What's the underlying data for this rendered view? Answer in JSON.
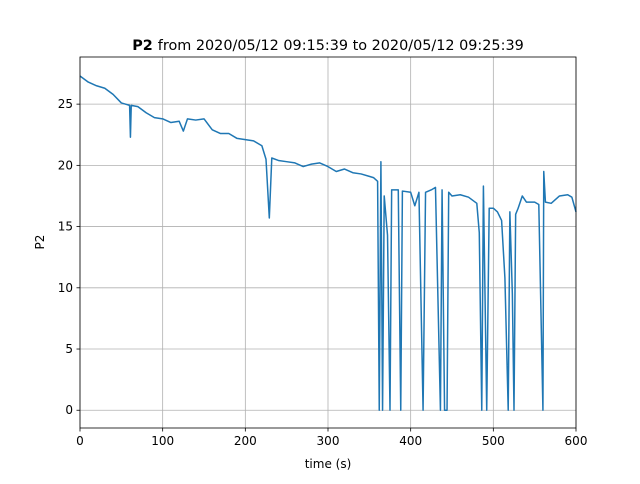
{
  "chart_data": {
    "type": "line",
    "title_bold": "P2",
    "title": "from 2020/05/12 09:15:39 to 2020/05/12 09:25:39",
    "x_label": "time (s)",
    "y_label": "P2",
    "xlim": [
      0,
      600
    ],
    "ylim": [
      -1.45,
      28.85
    ],
    "xticks": [
      0,
      100,
      200,
      300,
      400,
      500,
      600
    ],
    "yticks": [
      0,
      5,
      10,
      15,
      20,
      25
    ],
    "grid": true,
    "series": [
      {
        "name": "P2",
        "color": "#1f77b4",
        "x": [
          0,
          10,
          20,
          30,
          40,
          50,
          60,
          61,
          62,
          70,
          80,
          90,
          100,
          110,
          120,
          125,
          130,
          140,
          150,
          160,
          170,
          180,
          190,
          200,
          210,
          220,
          225,
          229,
          232,
          240,
          250,
          260,
          270,
          280,
          290,
          300,
          310,
          320,
          330,
          340,
          350,
          355,
          360,
          362,
          364,
          366,
          368,
          372,
          375,
          377,
          380,
          385,
          388,
          390,
          400,
          405,
          410,
          415,
          418,
          425,
          430,
          436,
          438,
          441,
          444,
          446,
          450,
          460,
          470,
          480,
          483,
          486,
          488,
          492,
          495,
          500,
          505,
          510,
          514,
          518,
          520,
          523,
          525,
          527,
          530,
          535,
          540,
          550,
          555,
          560,
          561,
          563,
          570,
          580,
          590,
          595,
          600
        ],
        "values": [
          27.3,
          26.8,
          26.5,
          26.3,
          25.8,
          25.1,
          24.9,
          22.3,
          24.9,
          24.8,
          24.3,
          23.9,
          23.8,
          23.5,
          23.6,
          22.8,
          23.8,
          23.7,
          23.8,
          22.9,
          22.6,
          22.6,
          22.2,
          22.1,
          22.0,
          21.6,
          20.5,
          15.7,
          20.6,
          20.4,
          20.3,
          20.2,
          19.9,
          20.1,
          20.2,
          19.9,
          19.5,
          19.7,
          19.4,
          19.3,
          19.1,
          19.0,
          18.7,
          0,
          20.3,
          0,
          17.5,
          14.3,
          0,
          18.0,
          18.0,
          18.0,
          0,
          17.9,
          17.8,
          16.7,
          17.8,
          0,
          17.8,
          18.0,
          18.2,
          0,
          18.0,
          0,
          0,
          17.8,
          17.5,
          17.6,
          17.4,
          16.9,
          14.5,
          0,
          18.3,
          0,
          16.5,
          16.5,
          16.2,
          15.5,
          10.8,
          0,
          16.2,
          9.5,
          0,
          16.0,
          16.5,
          17.5,
          17.0,
          17.0,
          16.8,
          0,
          19.5,
          17.0,
          16.9,
          17.5,
          17.6,
          17.4,
          16.2
        ]
      }
    ]
  }
}
